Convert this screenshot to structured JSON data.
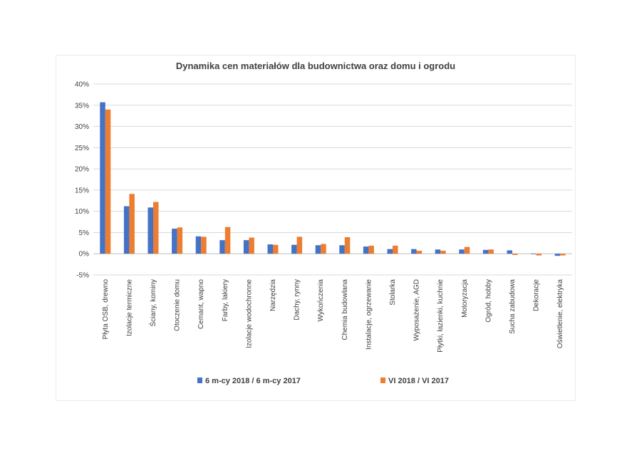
{
  "chart_data": {
    "type": "bar",
    "title": "Dynamika cen materiałów dla budownictwa oraz domu i ogrodu",
    "xlabel": "",
    "ylabel": "",
    "ylim": [
      -0.05,
      0.4
    ],
    "yticks": [
      {
        "value": 0.4,
        "label": "40%"
      },
      {
        "value": 0.35,
        "label": "35%"
      },
      {
        "value": 0.3,
        "label": "30%"
      },
      {
        "value": 0.25,
        "label": "25%"
      },
      {
        "value": 0.2,
        "label": "20%"
      },
      {
        "value": 0.15,
        "label": "15%"
      },
      {
        "value": 0.1,
        "label": "10%"
      },
      {
        "value": 0.05,
        "label": "5%"
      },
      {
        "value": 0.0,
        "label": "0%"
      },
      {
        "value": -0.05,
        "label": "-5%"
      }
    ],
    "grid": true,
    "legend_position": "bottom",
    "categories": [
      "Płyta OSB, drewno",
      "Izolacje termiczne",
      "Ściany, kominy",
      "Otoczenie domu",
      "Cemant, wapno",
      "Farby, lakiery",
      "Izolacje wodochronne",
      "Narzędzia",
      "Dachy, rynny",
      "Wykończenia",
      "Chemia budowlana",
      "Instalacje, ogrzewanie",
      "Stolarka",
      "Wyposażenie, AGD",
      "Płytki, łazienki, kuchnie",
      "Motoryzacja",
      "Ogród, hobby",
      "Sucha zabudowa",
      "Dekoracje",
      "Oświetlenie, elektryka"
    ],
    "series": [
      {
        "name": "6 m-cy 2018 / 6 m-cy 2017",
        "color": "#4472C4",
        "values": [
          0.357,
          0.112,
          0.109,
          0.059,
          0.041,
          0.032,
          0.032,
          0.022,
          0.021,
          0.02,
          0.02,
          0.017,
          0.011,
          0.011,
          0.01,
          0.01,
          0.009,
          0.008,
          -0.001,
          -0.005
        ]
      },
      {
        "name": "VI 2018 / VI 2017",
        "color": "#ED7D31",
        "values": [
          0.34,
          0.141,
          0.122,
          0.062,
          0.04,
          0.063,
          0.038,
          0.021,
          0.04,
          0.023,
          0.039,
          0.019,
          0.019,
          0.007,
          0.007,
          0.016,
          0.01,
          -0.003,
          -0.004,
          -0.004
        ]
      }
    ]
  }
}
